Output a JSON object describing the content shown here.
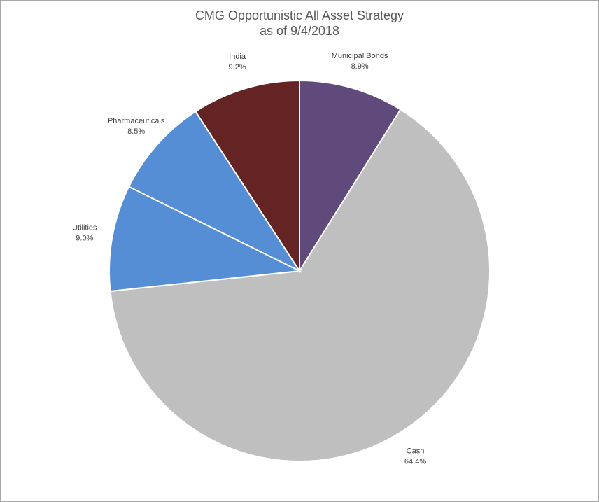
{
  "chart_data": {
    "type": "pie",
    "title": "CMG Opportunistic All Asset Strategy",
    "subtitle": "as of 9/4/2018",
    "categories": [
      "Municipal Bonds",
      "Cash",
      "Utilities",
      "Pharmaceuticals",
      "India"
    ],
    "values": [
      8.9,
      64.4,
      9.0,
      8.5,
      9.2
    ],
    "value_labels": [
      "8.9%",
      "64.4%",
      "9.0%",
      "8.5%",
      "9.2%"
    ],
    "colors": [
      "#604a7b",
      "#bfbfbf",
      "#558ed5",
      "#558ed5",
      "#632423"
    ]
  }
}
